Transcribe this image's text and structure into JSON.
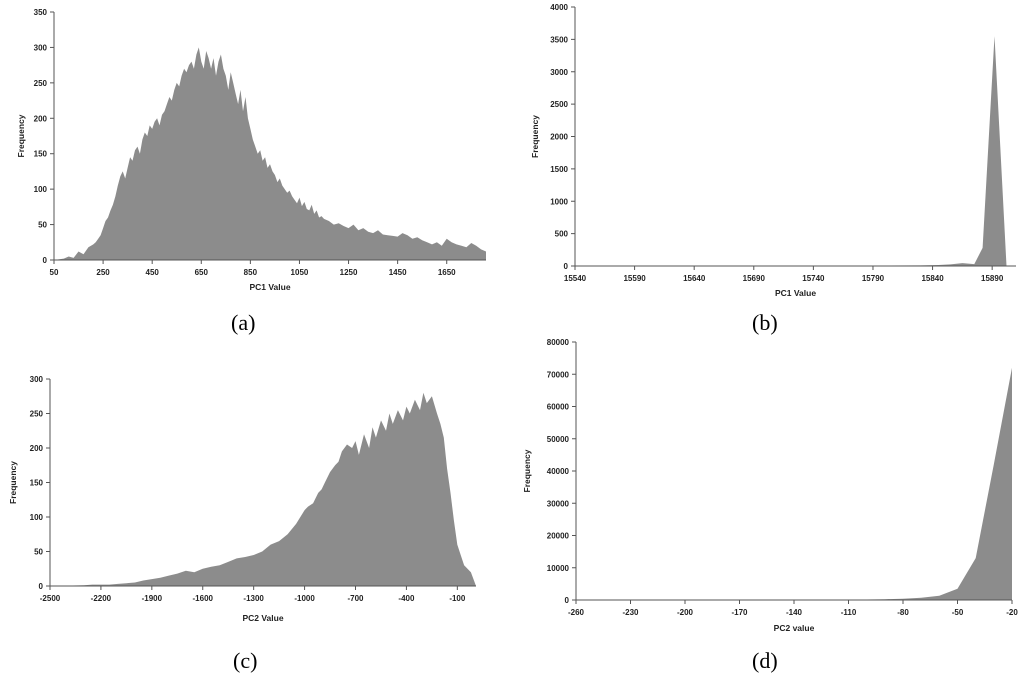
{
  "chart_data": [
    {
      "id": "a",
      "panel_label": "(a)",
      "type": "area",
      "xlabel": "PC1 Value",
      "ylabel": "Frequency",
      "xlim": [
        50,
        1810
      ],
      "ylim": [
        0,
        350
      ],
      "xticks": [
        "50",
        "250",
        "450",
        "650",
        "850",
        "1050",
        "1250",
        "1450",
        "1650"
      ],
      "yticks": [
        "0",
        "50",
        "100",
        "150",
        "200",
        "250",
        "300",
        "350"
      ],
      "fill": "#8c8c8c",
      "grid": false,
      "series": [
        {
          "x": [
            50,
            90,
            110,
            130,
            150,
            170,
            190,
            210,
            220,
            230,
            240,
            250,
            260,
            270,
            280,
            290,
            300,
            310,
            320,
            330,
            340,
            350,
            360,
            370,
            380,
            390,
            400,
            410,
            420,
            430,
            440,
            450,
            460,
            470,
            480,
            490,
            500,
            510,
            520,
            530,
            540,
            550,
            560,
            570,
            580,
            590,
            600,
            610,
            620,
            630,
            640,
            650,
            660,
            670,
            680,
            690,
            700,
            710,
            720,
            730,
            740,
            750,
            760,
            770,
            780,
            790,
            800,
            810,
            820,
            830,
            840,
            850,
            860,
            870,
            880,
            890,
            900,
            910,
            920,
            930,
            940,
            950,
            960,
            970,
            980,
            990,
            1000,
            1010,
            1020,
            1030,
            1040,
            1050,
            1060,
            1070,
            1080,
            1090,
            1100,
            1110,
            1120,
            1130,
            1140,
            1150,
            1170,
            1190,
            1210,
            1230,
            1250,
            1270,
            1290,
            1310,
            1330,
            1350,
            1370,
            1390,
            1410,
            1430,
            1450,
            1470,
            1490,
            1510,
            1530,
            1550,
            1570,
            1590,
            1610,
            1630,
            1650,
            1670,
            1690,
            1710,
            1730,
            1750,
            1770,
            1790,
            1810
          ],
          "values": [
            0,
            2,
            5,
            3,
            12,
            8,
            18,
            22,
            25,
            30,
            35,
            45,
            55,
            60,
            70,
            78,
            90,
            105,
            118,
            125,
            115,
            130,
            145,
            140,
            155,
            160,
            150,
            170,
            180,
            175,
            190,
            185,
            195,
            200,
            190,
            205,
            210,
            220,
            230,
            225,
            240,
            250,
            245,
            260,
            270,
            265,
            275,
            280,
            270,
            290,
            300,
            280,
            270,
            295,
            285,
            270,
            285,
            260,
            280,
            290,
            270,
            260,
            240,
            265,
            250,
            235,
            220,
            240,
            210,
            230,
            200,
            185,
            170,
            160,
            150,
            155,
            140,
            145,
            130,
            135,
            125,
            120,
            110,
            115,
            105,
            100,
            95,
            98,
            90,
            85,
            80,
            88,
            76,
            82,
            72,
            70,
            78,
            65,
            70,
            60,
            62,
            58,
            55,
            50,
            52,
            48,
            45,
            50,
            42,
            45,
            40,
            38,
            42,
            36,
            35,
            34,
            33,
            38,
            35,
            30,
            32,
            28,
            25,
            22,
            25,
            20,
            30,
            25,
            22,
            20,
            18,
            24,
            20,
            15,
            12
          ]
        }
      ]
    },
    {
      "id": "b",
      "panel_label": "(b)",
      "type": "area",
      "xlabel": "PC1 Value",
      "ylabel": "Frequency",
      "xlim": [
        15540,
        15910
      ],
      "ylim": [
        0,
        4000
      ],
      "xticks": [
        "15540",
        "15590",
        "15640",
        "15690",
        "15740",
        "15790",
        "15840",
        "15890"
      ],
      "yticks": [
        "0",
        "500",
        "1000",
        "1500",
        "2000",
        "2500",
        "3000",
        "3500",
        "4000"
      ],
      "fill": "#8c8c8c",
      "grid": false,
      "series": [
        {
          "x": [
            15540,
            15560,
            15600,
            15640,
            15680,
            15720,
            15760,
            15800,
            15830,
            15845,
            15855,
            15865,
            15875,
            15882,
            15892,
            15902,
            15905
          ],
          "values": [
            5,
            3,
            4,
            3,
            5,
            4,
            6,
            8,
            10,
            15,
            25,
            45,
            30,
            280,
            3550,
            0,
            0
          ]
        }
      ]
    },
    {
      "id": "c",
      "panel_label": "(c)",
      "type": "area",
      "xlabel": "PC2 Value",
      "ylabel": "Frequency",
      "xlim": [
        -2500,
        10
      ],
      "ylim": [
        0,
        300
      ],
      "xticks": [
        "-2500",
        "-2200",
        "-1900",
        "-1600",
        "-1300",
        "-1000",
        "-700",
        "-400",
        "-100"
      ],
      "yticks": [
        "0",
        "50",
        "100",
        "150",
        "200",
        "250",
        "300"
      ],
      "fill": "#8c8c8c",
      "grid": false,
      "series": [
        {
          "x": [
            -2500,
            -2300,
            -2250,
            -2150,
            -2100,
            -2050,
            -2000,
            -1950,
            -1900,
            -1850,
            -1800,
            -1750,
            -1700,
            -1650,
            -1600,
            -1550,
            -1500,
            -1450,
            -1400,
            -1350,
            -1300,
            -1250,
            -1200,
            -1150,
            -1100,
            -1050,
            -1000,
            -980,
            -950,
            -920,
            -900,
            -880,
            -850,
            -820,
            -800,
            -780,
            -750,
            -720,
            -700,
            -680,
            -650,
            -620,
            -600,
            -580,
            -550,
            -520,
            -500,
            -480,
            -450,
            -420,
            -400,
            -380,
            -350,
            -320,
            -300,
            -280,
            -250,
            -220,
            -200,
            -180,
            -160,
            -140,
            -120,
            -100,
            -80,
            -60,
            -40,
            -20,
            10
          ],
          "values": [
            0,
            1,
            2,
            2,
            3,
            4,
            5,
            8,
            10,
            12,
            15,
            18,
            22,
            20,
            25,
            28,
            30,
            35,
            40,
            42,
            45,
            50,
            60,
            65,
            75,
            90,
            110,
            115,
            120,
            135,
            140,
            150,
            165,
            175,
            180,
            195,
            205,
            200,
            210,
            190,
            220,
            200,
            230,
            215,
            240,
            225,
            250,
            235,
            255,
            240,
            260,
            250,
            270,
            255,
            280,
            265,
            275,
            250,
            235,
            215,
            170,
            135,
            95,
            60,
            45,
            30,
            25,
            20,
            0
          ]
        }
      ]
    },
    {
      "id": "d",
      "panel_label": "(d)",
      "type": "area",
      "xlabel": "PC2 value",
      "ylabel": "Frequency",
      "xlim": [
        -260,
        -20
      ],
      "ylim": [
        0,
        80000
      ],
      "xticks": [
        "-260",
        "-230",
        "-200",
        "-170",
        "-140",
        "-110",
        "-80",
        "-50",
        "-20"
      ],
      "yticks": [
        "0",
        "10000",
        "20000",
        "30000",
        "40000",
        "50000",
        "60000",
        "70000",
        "80000"
      ],
      "fill": "#8c8c8c",
      "grid": false,
      "series": [
        {
          "x": [
            -260,
            -200,
            -150,
            -120,
            -100,
            -90,
            -80,
            -70,
            -60,
            -50,
            -40,
            -30,
            -20
          ],
          "values": [
            0,
            5,
            30,
            80,
            150,
            250,
            400,
            700,
            1300,
            3500,
            13000,
            42000,
            72000
          ]
        }
      ]
    }
  ]
}
